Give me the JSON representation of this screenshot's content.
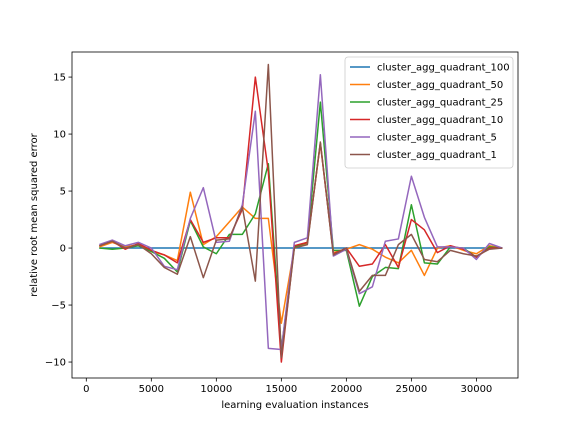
{
  "chart_data": {
    "type": "line",
    "xlabel": "learning evaluation instances",
    "ylabel": "relative root mean squared error",
    "xlim": [
      -1100,
      33200
    ],
    "ylim": [
      -11.4,
      17.2
    ],
    "xticks": [
      0,
      5000,
      10000,
      15000,
      20000,
      25000,
      30000
    ],
    "yticks": [
      -10,
      -5,
      0,
      5,
      10,
      15
    ],
    "grid": false,
    "legend_position": "top-right",
    "x": [
      1000,
      2000,
      3000,
      4000,
      5000,
      6000,
      7000,
      8000,
      9000,
      10000,
      11000,
      12000,
      13000,
      14000,
      15000,
      16000,
      17000,
      18000,
      19000,
      20000,
      21000,
      22000,
      23000,
      24000,
      25000,
      26000,
      27000,
      28000,
      29000,
      30000,
      31000,
      32000
    ],
    "series": [
      {
        "name": "cluster_agg_quadrant_100",
        "color": "#1f77b4",
        "values": [
          0,
          0,
          0,
          0,
          0,
          0,
          0,
          0,
          0,
          0,
          0,
          0,
          0,
          0,
          0,
          0,
          0,
          0,
          0,
          0,
          0,
          0,
          0,
          0,
          0,
          0,
          0,
          0,
          0,
          0,
          0,
          0
        ]
      },
      {
        "name": "cluster_agg_quadrant_50",
        "color": "#ff7f0e",
        "values": [
          0.1,
          0.5,
          0.1,
          0.3,
          -0.3,
          -0.6,
          -1.1,
          4.9,
          0.3,
          1.0,
          2.3,
          3.6,
          2.6,
          2.6,
          -6.6,
          0.0,
          0.4,
          9.2,
          -0.4,
          -0.1,
          0.3,
          -0.1,
          -0.8,
          -1.3,
          -0.2,
          -2.4,
          0.0,
          0.2,
          -0.2,
          -0.5,
          0.2,
          0.0
        ]
      },
      {
        "name": "cluster_agg_quadrant_25",
        "color": "#2ca02c",
        "values": [
          0.0,
          -0.1,
          0.0,
          0.2,
          -0.3,
          -0.9,
          -2.1,
          2.4,
          0.1,
          -0.5,
          1.2,
          1.2,
          3.0,
          7.4,
          -8.9,
          0.1,
          0.5,
          12.8,
          -0.2,
          -0.2,
          -5.1,
          -2.5,
          -1.7,
          -1.8,
          3.8,
          -1.3,
          -1.4,
          0.1,
          0.0,
          -0.8,
          0.1,
          0.0
        ]
      },
      {
        "name": "cluster_agg_quadrant_10",
        "color": "#d62728",
        "values": [
          0.2,
          0.6,
          -0.1,
          0.4,
          -0.2,
          -0.6,
          -1.3,
          2.5,
          0.5,
          0.9,
          0.9,
          3.4,
          15.0,
          6.7,
          -10.0,
          0.2,
          0.5,
          9.2,
          -0.5,
          0.0,
          -1.6,
          -1.4,
          0.3,
          -1.7,
          2.5,
          1.6,
          -0.4,
          0.2,
          -0.1,
          -0.8,
          0.0,
          0.0
        ]
      },
      {
        "name": "cluster_agg_quadrant_5",
        "color": "#9467bd",
        "values": [
          0.3,
          0.7,
          0.2,
          0.5,
          0.0,
          -1.6,
          -1.9,
          2.6,
          5.3,
          0.5,
          0.6,
          3.8,
          12.0,
          -8.8,
          -8.9,
          0.5,
          0.9,
          15.2,
          -0.7,
          -0.1,
          -4.0,
          -3.4,
          0.6,
          0.8,
          6.3,
          2.7,
          0.1,
          0.1,
          0.0,
          -1.0,
          0.4,
          0.0
        ]
      },
      {
        "name": "cluster_agg_quadrant_1",
        "color": "#8c564b",
        "values": [
          0.2,
          0.6,
          0.0,
          0.3,
          -0.5,
          -1.7,
          -2.3,
          1.0,
          -2.6,
          0.7,
          0.8,
          3.6,
          -2.9,
          16.1,
          -9.6,
          0.0,
          0.3,
          9.3,
          -0.6,
          0.0,
          -3.8,
          -2.4,
          -2.4,
          0.3,
          1.2,
          -1.0,
          -1.2,
          -0.2,
          -0.5,
          -0.7,
          -0.1,
          0.0
        ]
      }
    ]
  }
}
